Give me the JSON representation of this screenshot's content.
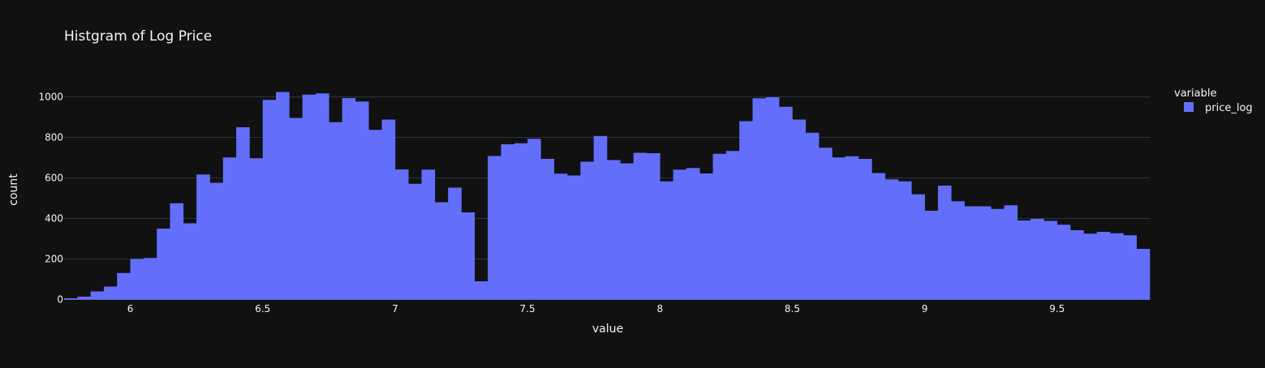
{
  "chart_data": {
    "type": "bar",
    "title": "Histgram of Log Price",
    "xlabel": "value",
    "ylabel": "count",
    "xlim": [
      5.75,
      9.85
    ],
    "ylim": [
      0,
      1000
    ],
    "bin_width": 0.05,
    "x_ticks": [
      6,
      6.5,
      7,
      7.5,
      8,
      8.5,
      9,
      9.5
    ],
    "x_tick_labels": [
      "6",
      "6.5",
      "7",
      "7.5",
      "8",
      "8.5",
      "9",
      "9.5"
    ],
    "y_ticks": [
      0,
      200,
      400,
      600,
      800,
      1000
    ],
    "y_tick_labels": [
      "0",
      "200",
      "400",
      "600",
      "800",
      "1000"
    ],
    "grid": "horizontal",
    "legend": {
      "title": "variable",
      "position": "right"
    },
    "series": [
      {
        "name": "price_log",
        "color": "#636efa",
        "bin_start": 5.75,
        "values": [
          6,
          14,
          40,
          64,
          131,
          200,
          205,
          350,
          475,
          376,
          617,
          576,
          701,
          850,
          697,
          985,
          1024,
          896,
          1011,
          1017,
          875,
          994,
          977,
          837,
          888,
          642,
          571,
          641,
          480,
          552,
          430,
          90,
          708,
          766,
          771,
          793,
          694,
          621,
          612,
          680,
          807,
          688,
          672,
          724,
          722,
          583,
          641,
          649,
          622,
          719,
          733,
          880,
          993,
          998,
          951,
          888,
          823,
          749,
          701,
          707,
          694,
          624,
          593,
          583,
          519,
          438,
          562,
          485,
          460,
          460,
          447,
          465,
          390,
          398,
          388,
          369,
          342,
          325,
          334,
          327,
          317,
          250
        ]
      }
    ]
  }
}
